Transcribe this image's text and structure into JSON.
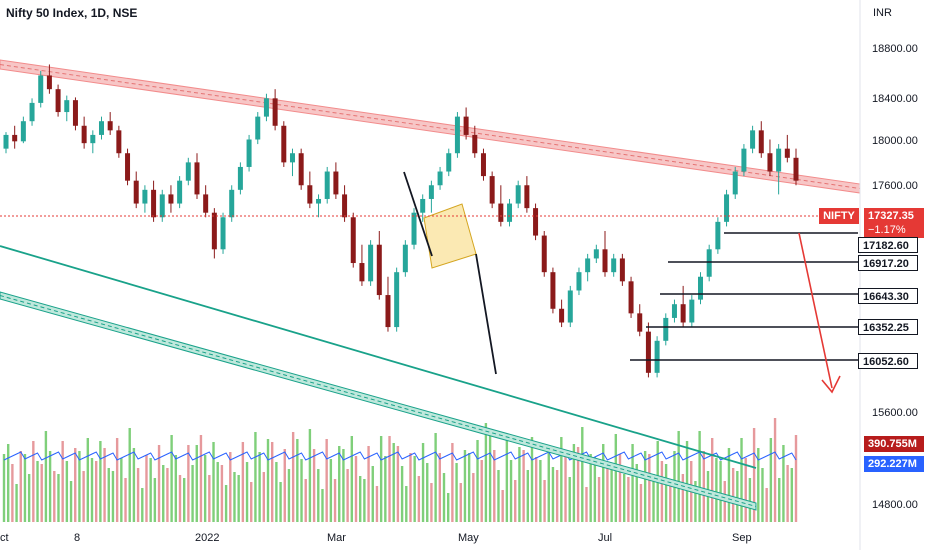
{
  "header": {
    "title": "Nifty 50 Index, 1D, NSE"
  },
  "price_axis": {
    "unit": "INR"
  },
  "tags": {
    "symbol": "NIFTY",
    "last_price": "17327.35",
    "change": "−1.17%",
    "vol_ma_short": "390.755M",
    "vol_ma_long": "292.227M"
  },
  "levels": [
    "17182.60",
    "16917.20",
    "16643.30",
    "16352.25",
    "16052.60"
  ],
  "colors": {
    "up": "#26a69a",
    "down": "#8b1a1a",
    "channel_upper": "#f28b8b",
    "channel_lower": "#19a28a",
    "volume_up": "#7fcf7a",
    "volume_down": "#e6999c",
    "volume_ma": "#2962ff",
    "projection": "#e53935",
    "pattern_box": "#f7d774"
  },
  "chart_data": {
    "type": "candlestick",
    "title": "Nifty 50 Index, 1D, NSE",
    "ylabel": "INR",
    "ylim": [
      14600,
      19000
    ],
    "y_ticks": [
      18800,
      18400,
      18000,
      17600,
      15600,
      14800
    ],
    "y_tick_labels": [
      "18800.00",
      "18400.00",
      "18000.00",
      "17600.00",
      "15600.00",
      "14800.00"
    ],
    "x_tick_labels": [
      "ct",
      "8",
      "2022",
      "Mar",
      "May",
      "Jul",
      "Sep"
    ],
    "last_price": 17327.35,
    "change_pct": -1.17,
    "horizontal_levels": [
      17182.6,
      16917.2,
      16643.3,
      16352.25,
      16052.6
    ],
    "volume_ma": [
      "390.755M",
      "292.227M"
    ],
    "series": [
      {
        "values": [
          [
            17700,
            17880,
            17650,
            17850
          ],
          [
            17850,
            17950,
            17700,
            17780
          ],
          [
            17780,
            18050,
            17760,
            18000
          ],
          [
            18000,
            18250,
            17950,
            18200
          ],
          [
            18200,
            18550,
            18150,
            18500
          ],
          [
            18500,
            18620,
            18300,
            18350
          ],
          [
            18350,
            18400,
            18050,
            18100
          ],
          [
            18100,
            18280,
            18000,
            18230
          ],
          [
            18230,
            18260,
            17900,
            17950
          ],
          [
            17950,
            18050,
            17700,
            17760
          ],
          [
            17760,
            17900,
            17650,
            17850
          ],
          [
            17850,
            18050,
            17800,
            18000
          ],
          [
            18000,
            18100,
            17850,
            17900
          ],
          [
            17900,
            17950,
            17600,
            17650
          ],
          [
            17650,
            17700,
            17300,
            17350
          ],
          [
            17350,
            17450,
            17050,
            17100
          ],
          [
            17100,
            17300,
            17000,
            17250
          ],
          [
            17250,
            17350,
            16900,
            16950
          ],
          [
            16950,
            17250,
            16900,
            17200
          ],
          [
            17200,
            17300,
            17000,
            17100
          ],
          [
            17100,
            17400,
            17050,
            17350
          ],
          [
            17350,
            17600,
            17300,
            17550
          ],
          [
            17550,
            17650,
            17150,
            17200
          ],
          [
            17200,
            17300,
            16950,
            17000
          ],
          [
            17000,
            17050,
            16500,
            16600
          ],
          [
            16600,
            17000,
            16550,
            16950
          ],
          [
            16950,
            17300,
            16900,
            17250
          ],
          [
            17250,
            17550,
            17200,
            17500
          ],
          [
            17500,
            17850,
            17450,
            17800
          ],
          [
            17800,
            18100,
            17750,
            18050
          ],
          [
            18050,
            18300,
            18000,
            18250
          ],
          [
            18250,
            18350,
            17900,
            17950
          ],
          [
            17950,
            18000,
            17500,
            17550
          ],
          [
            17550,
            17700,
            17400,
            17650
          ],
          [
            17650,
            17700,
            17250,
            17300
          ],
          [
            17300,
            17450,
            17050,
            17100
          ],
          [
            17100,
            17200,
            16950,
            17150
          ],
          [
            17150,
            17500,
            17100,
            17450
          ],
          [
            17450,
            17550,
            17150,
            17200
          ],
          [
            17200,
            17300,
            16900,
            16950
          ],
          [
            16950,
            17000,
            16400,
            16450
          ],
          [
            16450,
            16650,
            16200,
            16250
          ],
          [
            16250,
            16700,
            16200,
            16650
          ],
          [
            16650,
            16800,
            16050,
            16100
          ],
          [
            16100,
            16300,
            15700,
            15750
          ],
          [
            15750,
            16400,
            15700,
            16350
          ],
          [
            16350,
            16700,
            16300,
            16650
          ],
          [
            16650,
            17050,
            16600,
            17000
          ],
          [
            17000,
            17200,
            16900,
            17150
          ],
          [
            17150,
            17350,
            17000,
            17300
          ],
          [
            17300,
            17500,
            17250,
            17450
          ],
          [
            17450,
            17700,
            17400,
            17650
          ],
          [
            17650,
            18100,
            17600,
            18050
          ],
          [
            18050,
            18150,
            17800,
            17850
          ],
          [
            17850,
            17950,
            17600,
            17650
          ],
          [
            17650,
            17700,
            17350,
            17400
          ],
          [
            17400,
            17450,
            17050,
            17100
          ],
          [
            17100,
            17300,
            16850,
            16900
          ],
          [
            16900,
            17150,
            16850,
            17100
          ],
          [
            17100,
            17350,
            17050,
            17300
          ],
          [
            17300,
            17400,
            17000,
            17050
          ],
          [
            17050,
            17100,
            16700,
            16750
          ],
          [
            16750,
            16800,
            16300,
            16350
          ],
          [
            16350,
            16400,
            15900,
            15950
          ],
          [
            15950,
            16050,
            15750,
            15800
          ],
          [
            15800,
            16200,
            15750,
            16150
          ],
          [
            16150,
            16400,
            16100,
            16350
          ],
          [
            16350,
            16550,
            16250,
            16500
          ],
          [
            16500,
            16650,
            16450,
            16600
          ],
          [
            16600,
            16800,
            16300,
            16350
          ],
          [
            16350,
            16550,
            16300,
            16500
          ],
          [
            16500,
            16550,
            16200,
            16250
          ],
          [
            16250,
            16300,
            15850,
            15900
          ],
          [
            15900,
            16000,
            15650,
            15700
          ],
          [
            15700,
            15800,
            15200,
            15250
          ],
          [
            15250,
            15650,
            15200,
            15600
          ],
          [
            15600,
            15900,
            15550,
            15850
          ],
          [
            15850,
            16050,
            15800,
            16000
          ],
          [
            16000,
            16200,
            15750,
            15800
          ],
          [
            15800,
            16100,
            15750,
            16050
          ],
          [
            16050,
            16350,
            16000,
            16300
          ],
          [
            16300,
            16650,
            16250,
            16600
          ],
          [
            16600,
            16950,
            16550,
            16900
          ],
          [
            16900,
            17250,
            16850,
            17200
          ],
          [
            17200,
            17500,
            17150,
            17450
          ],
          [
            17450,
            17750,
            17400,
            17700
          ],
          [
            17700,
            17950,
            17650,
            17900
          ],
          [
            17900,
            18000,
            17600,
            17650
          ],
          [
            17650,
            17800,
            17400,
            17450
          ],
          [
            17450,
            17750,
            17200,
            17700
          ],
          [
            17700,
            17850,
            17550,
            17600
          ],
          [
            17600,
            17700,
            17300,
            17350
          ]
        ]
      }
    ]
  }
}
